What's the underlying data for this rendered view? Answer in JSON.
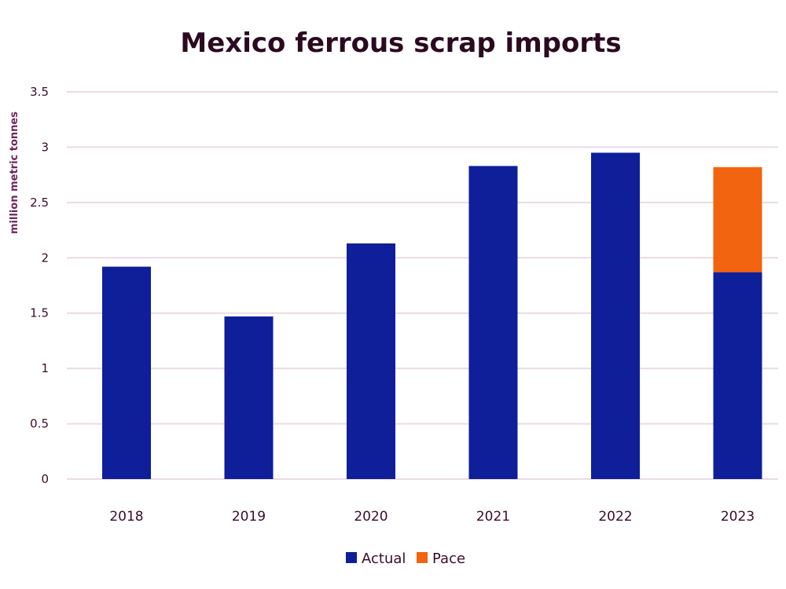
{
  "chart_data": {
    "type": "bar",
    "stacked": true,
    "title": "Mexico ferrous scrap imports",
    "ylabel": "million metric tonnes",
    "xlabel": "",
    "categories": [
      "2018",
      "2019",
      "2020",
      "2021",
      "2022",
      "2023"
    ],
    "series": [
      {
        "name": "Actual",
        "color": "#0f1f99",
        "values": [
          1.92,
          1.47,
          2.13,
          2.83,
          2.95,
          1.87
        ]
      },
      {
        "name": "Pace",
        "color": "#f2640f",
        "values": [
          0,
          0,
          0,
          0,
          0,
          0.95
        ]
      }
    ],
    "ylim": [
      0,
      3.5
    ],
    "yticks": [
      "0",
      "0.5",
      "1",
      "1.5",
      "2",
      "2.5",
      "3",
      "3.5"
    ],
    "ytick_values": [
      0,
      0.5,
      1,
      1.5,
      2,
      2.5,
      3,
      3.5
    ],
    "grid": true,
    "legend_position": "bottom-center"
  }
}
